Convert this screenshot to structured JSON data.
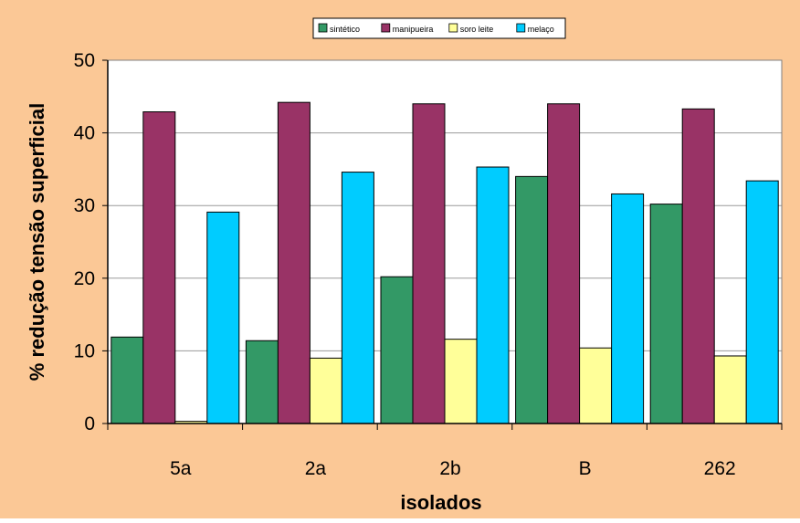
{
  "colors": {
    "chart_area_bg": "#fbc896",
    "plot_area_bg": "#ffffff",
    "gridline": "#9a9a9a",
    "border": "#000000"
  },
  "chart_data": {
    "type": "bar",
    "title": "",
    "xlabel": "isolados",
    "ylabel": "% redução tensão superficial",
    "categories": [
      "5a",
      "2a",
      "2b",
      "B",
      "262"
    ],
    "ylim": [
      0,
      50
    ],
    "yticks": [
      0,
      10,
      20,
      30,
      40,
      50
    ],
    "grid": true,
    "legend_position": "top-center",
    "series": [
      {
        "name": "sintético",
        "color": "#339966",
        "values": [
          11.9,
          11.4,
          20.2,
          34.0,
          30.2
        ]
      },
      {
        "name": "manipueira",
        "color": "#993366",
        "values": [
          42.9,
          44.2,
          44.0,
          44.0,
          43.3
        ]
      },
      {
        "name": "soro leite",
        "color": "#ffff99",
        "values": [
          0.3,
          9.0,
          11.6,
          10.4,
          9.3
        ]
      },
      {
        "name": "melaço",
        "color": "#00ccff",
        "values": [
          29.1,
          34.6,
          35.3,
          31.6,
          33.4
        ]
      }
    ]
  }
}
